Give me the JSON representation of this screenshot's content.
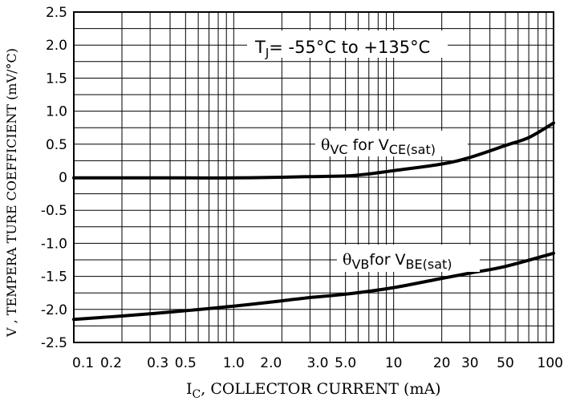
{
  "chart_data": {
    "type": "line",
    "xscale": "log",
    "xlim": [
      0.1,
      100
    ],
    "ylim": [
      -2.5,
      2.5
    ],
    "grid": true,
    "x_ticks": [
      "0.1",
      "0.2",
      "0.3",
      "0.5",
      "1.0",
      "2.0",
      "3.0",
      "5.0",
      "10",
      "20",
      "30",
      "50",
      "100"
    ],
    "y_ticks": [
      "2.5",
      "2.0",
      "1.5",
      "1.0",
      "0.5",
      "0",
      "-0.5",
      "-1.0",
      "-1.5",
      "-2.0",
      "-2.5"
    ],
    "xlabel": {
      "main": "I",
      "sub": "C",
      "rest": ", COLLECTOR CURRENT (mA)"
    },
    "ylabel": "V , TEMPERA TURE COEFFICIENT (mV/°C)",
    "annotation": {
      "prefix": "T",
      "sub": "J",
      "rest": "= -55°C to +135°C"
    },
    "series": [
      {
        "label": {
          "sym": "θ",
          "sub1": "VC",
          "mid": " for V",
          "sub2": "CE(sat)"
        },
        "x": [
          0.1,
          0.2,
          0.5,
          1.0,
          2.0,
          3.0,
          5.0,
          7.0,
          10,
          20,
          30,
          50,
          70,
          100
        ],
        "y": [
          -0.01,
          -0.01,
          -0.01,
          -0.01,
          0.0,
          0.01,
          0.02,
          0.05,
          0.1,
          0.2,
          0.3,
          0.48,
          0.6,
          0.82
        ]
      },
      {
        "label": {
          "sym": "θ",
          "sub1": "VB",
          "mid": "for V",
          "sub2": "BE(sat)"
        },
        "x": [
          0.1,
          0.2,
          0.5,
          1.0,
          2.0,
          3.0,
          5.0,
          10,
          20,
          30,
          50,
          100
        ],
        "y": [
          -2.15,
          -2.1,
          -2.02,
          -1.95,
          -1.87,
          -1.82,
          -1.77,
          -1.67,
          -1.53,
          -1.45,
          -1.35,
          -1.15
        ]
      }
    ]
  }
}
